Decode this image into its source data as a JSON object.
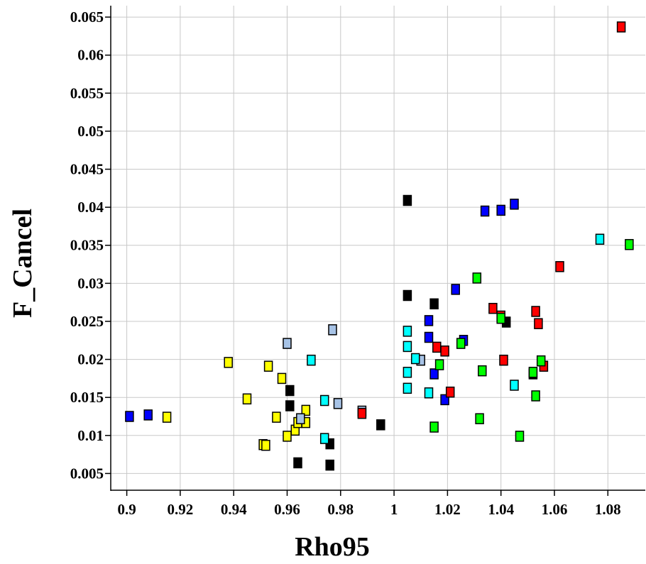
{
  "chart_data": {
    "type": "scatter",
    "title": "",
    "xlabel": "Rho95",
    "ylabel": "F_Cancel",
    "xlim": [
      0.894,
      1.094
    ],
    "ylim": [
      0.0028,
      0.0665
    ],
    "x_ticks": [
      0.9,
      0.92,
      0.94,
      0.96,
      0.98,
      1,
      1.02,
      1.04,
      1.06,
      1.08
    ],
    "x_tick_labels": [
      "0.9",
      "0.92",
      "0.94",
      "0.96",
      "0.98",
      "1",
      "1.02",
      "1.04",
      "1.06",
      "1.08"
    ],
    "y_ticks": [
      0.005,
      0.01,
      0.015,
      0.02,
      0.025,
      0.03,
      0.035,
      0.04,
      0.045,
      0.05,
      0.055,
      0.06,
      0.065
    ],
    "y_tick_labels": [
      "0.005",
      "0.01",
      "0.015",
      "0.02",
      "0.025",
      "0.03",
      "0.035",
      "0.04",
      "0.045",
      "0.05",
      "0.055",
      "0.06",
      "0.065"
    ],
    "grid": true,
    "legend": "none",
    "series": [
      {
        "color": "#0000ff",
        "points": [
          [
            0.901,
            0.0125
          ],
          [
            0.908,
            0.0127
          ],
          [
            1.013,
            0.0251
          ],
          [
            1.013,
            0.0229
          ],
          [
            1.015,
            0.0181
          ],
          [
            1.019,
            0.0147
          ],
          [
            1.023,
            0.0292
          ],
          [
            1.026,
            0.0225
          ],
          [
            1.034,
            0.0395
          ],
          [
            1.04,
            0.0396
          ],
          [
            1.045,
            0.0404
          ]
        ]
      },
      {
        "color": "#ffff00",
        "points": [
          [
            0.915,
            0.0124
          ],
          [
            0.938,
            0.0196
          ],
          [
            0.945,
            0.0148
          ],
          [
            0.951,
            0.0088
          ],
          [
            0.952,
            0.0087
          ],
          [
            0.953,
            0.0191
          ],
          [
            0.956,
            0.0124
          ],
          [
            0.958,
            0.0175
          ],
          [
            0.96,
            0.0099
          ],
          [
            0.963,
            0.0107
          ],
          [
            0.964,
            0.0117
          ],
          [
            0.967,
            0.0133
          ],
          [
            0.967,
            0.0117
          ]
        ]
      },
      {
        "color": "#000000",
        "points": [
          [
            0.961,
            0.0159
          ],
          [
            0.961,
            0.0139
          ],
          [
            0.964,
            0.0064
          ],
          [
            0.976,
            0.0089
          ],
          [
            0.976,
            0.0061
          ],
          [
            0.995,
            0.0114
          ],
          [
            1.005,
            0.0409
          ],
          [
            1.005,
            0.0284
          ],
          [
            1.015,
            0.0273
          ],
          [
            1.042,
            0.0249
          ],
          [
            1.052,
            0.0181
          ]
        ]
      },
      {
        "color": "#a7c3e6",
        "points": [
          [
            0.96,
            0.0221
          ],
          [
            0.965,
            0.0122
          ],
          [
            0.977,
            0.0239
          ],
          [
            0.979,
            0.0142
          ],
          [
            0.988,
            0.0132
          ],
          [
            1.01,
            0.0199
          ]
        ]
      },
      {
        "color": "#00ffff",
        "points": [
          [
            0.969,
            0.0199
          ],
          [
            0.974,
            0.0146
          ],
          [
            0.974,
            0.0096
          ],
          [
            1.005,
            0.0237
          ],
          [
            1.005,
            0.0217
          ],
          [
            1.005,
            0.0183
          ],
          [
            1.005,
            0.0162
          ],
          [
            1.008,
            0.0201
          ],
          [
            1.013,
            0.0156
          ],
          [
            1.045,
            0.0166
          ],
          [
            1.077,
            0.0358
          ]
        ]
      },
      {
        "color": "#ff0000",
        "points": [
          [
            0.988,
            0.0129
          ],
          [
            1.016,
            0.0216
          ],
          [
            1.019,
            0.0211
          ],
          [
            1.021,
            0.0157
          ],
          [
            1.037,
            0.0267
          ],
          [
            1.04,
            0.0257
          ],
          [
            1.041,
            0.0199
          ],
          [
            1.053,
            0.0263
          ],
          [
            1.054,
            0.0247
          ],
          [
            1.056,
            0.0191
          ],
          [
            1.062,
            0.0322
          ],
          [
            1.085,
            0.0637
          ]
        ]
      },
      {
        "color": "#00ff00",
        "points": [
          [
            1.015,
            0.0111
          ],
          [
            1.017,
            0.0193
          ],
          [
            1.025,
            0.0221
          ],
          [
            1.031,
            0.0307
          ],
          [
            1.032,
            0.0122
          ],
          [
            1.033,
            0.0185
          ],
          [
            1.04,
            0.0254
          ],
          [
            1.047,
            0.0099
          ],
          [
            1.052,
            0.0183
          ],
          [
            1.053,
            0.0152
          ],
          [
            1.055,
            0.0198
          ],
          [
            1.088,
            0.0351
          ]
        ]
      }
    ]
  }
}
